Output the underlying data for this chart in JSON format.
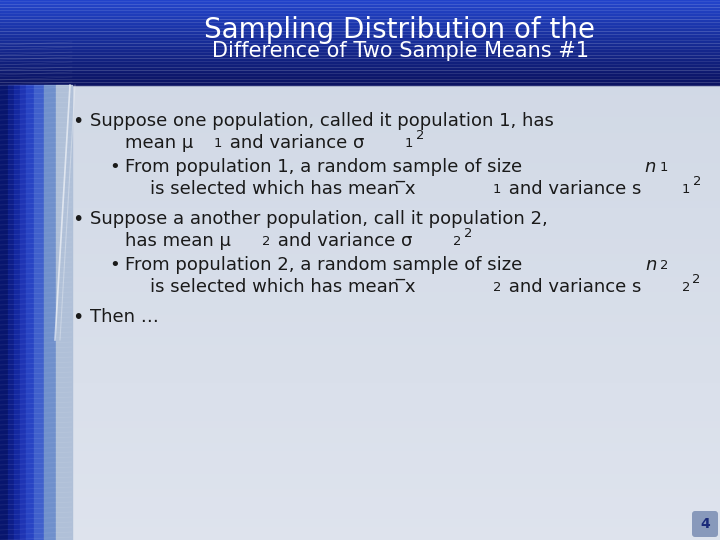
{
  "title_line1": "Sampling Distribution of the",
  "title_line2": "Difference of Two Sample Means #1",
  "title_fontsize": 20,
  "subtitle_fontsize": 15,
  "body_fontsize": 13,
  "page_number": "4",
  "body_bg": "#d8dce8",
  "header_dark": "#0a1260",
  "header_mid": "#1a3aaa",
  "header_light": "#2244cc",
  "stripe_colors": [
    "#08156e",
    "#0d1e8a",
    "#1428a0",
    "#1e34b4",
    "#2844c4",
    "#4060cc",
    "#7090cc",
    "#b0c0d8"
  ],
  "stripe_widths": [
    8,
    6,
    6,
    6,
    8,
    10,
    12,
    16
  ],
  "text_color": "#1a1a1a"
}
